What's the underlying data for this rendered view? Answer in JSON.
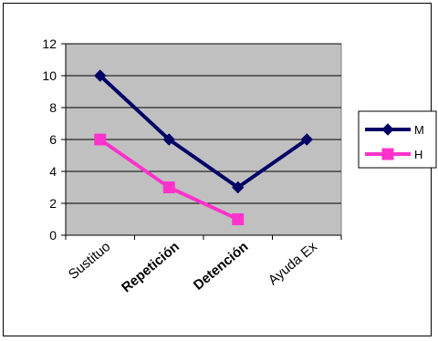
{
  "chart_data": {
    "type": "line",
    "categories": [
      "Sustituo",
      "Repetición",
      "Detención",
      "Ayuda Ex"
    ],
    "series": [
      {
        "name": "M",
        "values": [
          10,
          6,
          3,
          6
        ],
        "color": "#000066",
        "marker": "diamond"
      },
      {
        "name": "H",
        "values": [
          6,
          3,
          1,
          null
        ],
        "color": "#ff33cc",
        "marker": "square"
      }
    ],
    "ylim": [
      0,
      12
    ],
    "yticks": [
      0,
      2,
      4,
      6,
      8,
      10,
      12
    ],
    "grid": true,
    "plot_background": "#c0c0c0",
    "legend_position": "right"
  }
}
